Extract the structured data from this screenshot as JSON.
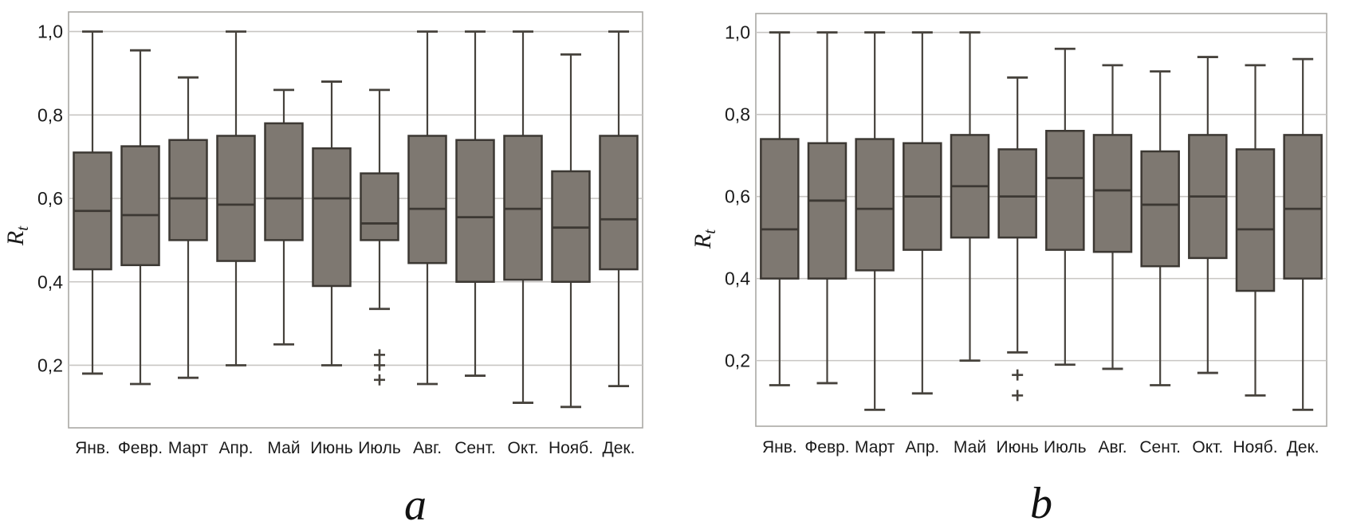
{
  "figure": {
    "background": "#ffffff"
  },
  "colors": {
    "box_fill": "#7e7871",
    "box_border": "#3c3833",
    "whisker": "#46423c",
    "median": "#3c3833",
    "gridline": "#c8c6c3",
    "plot_border": "#aaa8a5",
    "text": "#1b1b1b",
    "outlier": "#46423c"
  },
  "chart_data": [
    {
      "type": "box",
      "caption": "a",
      "ylabel": {
        "main": "R",
        "sub": "t"
      },
      "ylim": [
        0.05,
        1.047
      ],
      "grid": true,
      "yticks": [
        {
          "label": "1,0",
          "value": 1.0
        },
        {
          "label": "0,8",
          "value": 0.8
        },
        {
          "label": "0,6",
          "value": 0.6
        },
        {
          "label": "0,4",
          "value": 0.4
        },
        {
          "label": "0,2",
          "value": 0.2
        }
      ],
      "categories": [
        "Янв.",
        "Февр.",
        "Март",
        "Апр.",
        "Май",
        "Июнь",
        "Июль",
        "Авг.",
        "Сент.",
        "Окт.",
        "Нояб.",
        "Дек."
      ],
      "boxes": [
        {
          "month": "Янв.",
          "low": 0.18,
          "q1": 0.43,
          "median": 0.57,
          "q3": 0.71,
          "high": 1.0,
          "outliers": []
        },
        {
          "month": "Февр.",
          "low": 0.155,
          "q1": 0.44,
          "median": 0.56,
          "q3": 0.725,
          "high": 0.955,
          "outliers": []
        },
        {
          "month": "Март",
          "low": 0.17,
          "q1": 0.5,
          "median": 0.6,
          "q3": 0.74,
          "high": 0.89,
          "outliers": []
        },
        {
          "month": "Апр.",
          "low": 0.2,
          "q1": 0.45,
          "median": 0.585,
          "q3": 0.75,
          "high": 1.0,
          "outliers": []
        },
        {
          "month": "Май",
          "low": 0.25,
          "q1": 0.5,
          "median": 0.6,
          "q3": 0.78,
          "high": 0.86,
          "outliers": []
        },
        {
          "month": "Июнь",
          "low": 0.2,
          "q1": 0.39,
          "median": 0.6,
          "q3": 0.72,
          "high": 0.88,
          "outliers": []
        },
        {
          "month": "Июль",
          "low": 0.335,
          "q1": 0.5,
          "median": 0.54,
          "q3": 0.66,
          "high": 0.86,
          "outliers": [
            0.225,
            0.2,
            0.165
          ]
        },
        {
          "month": "Авг.",
          "low": 0.155,
          "q1": 0.445,
          "median": 0.575,
          "q3": 0.75,
          "high": 1.0,
          "outliers": []
        },
        {
          "month": "Сент.",
          "low": 0.175,
          "q1": 0.4,
          "median": 0.555,
          "q3": 0.74,
          "high": 1.0,
          "outliers": []
        },
        {
          "month": "Окт.",
          "low": 0.11,
          "q1": 0.405,
          "median": 0.575,
          "q3": 0.75,
          "high": 1.0,
          "outliers": []
        },
        {
          "month": "Нояб.",
          "low": 0.1,
          "q1": 0.4,
          "median": 0.53,
          "q3": 0.665,
          "high": 0.945,
          "outliers": []
        },
        {
          "month": "Дек.",
          "low": 0.15,
          "q1": 0.43,
          "median": 0.55,
          "q3": 0.75,
          "high": 1.0,
          "outliers": []
        }
      ]
    },
    {
      "type": "box",
      "caption": "b",
      "ylabel": {
        "main": "R",
        "sub": "t"
      },
      "ylim": [
        0.04,
        1.046
      ],
      "grid": true,
      "yticks": [
        {
          "label": "1,0",
          "value": 1.0
        },
        {
          "label": "0,8",
          "value": 0.8
        },
        {
          "label": "0,6",
          "value": 0.6
        },
        {
          "label": "0,4",
          "value": 0.4
        },
        {
          "label": "0,2",
          "value": 0.2
        }
      ],
      "categories": [
        "Янв.",
        "Февр.",
        "Март",
        "Апр.",
        "Май",
        "Июнь",
        "Июль",
        "Авг.",
        "Сент.",
        "Окт.",
        "Нояб.",
        "Дек."
      ],
      "boxes": [
        {
          "month": "Янв.",
          "low": 0.14,
          "q1": 0.4,
          "median": 0.52,
          "q3": 0.74,
          "high": 1.0,
          "outliers": []
        },
        {
          "month": "Февр.",
          "low": 0.145,
          "q1": 0.4,
          "median": 0.59,
          "q3": 0.73,
          "high": 1.0,
          "outliers": []
        },
        {
          "month": "Март",
          "low": 0.08,
          "q1": 0.42,
          "median": 0.57,
          "q3": 0.74,
          "high": 1.0,
          "outliers": []
        },
        {
          "month": "Апр.",
          "low": 0.12,
          "q1": 0.47,
          "median": 0.6,
          "q3": 0.73,
          "high": 1.0,
          "outliers": []
        },
        {
          "month": "Май",
          "low": 0.2,
          "q1": 0.5,
          "median": 0.625,
          "q3": 0.75,
          "high": 1.0,
          "outliers": []
        },
        {
          "month": "Июнь",
          "low": 0.22,
          "q1": 0.5,
          "median": 0.6,
          "q3": 0.715,
          "high": 0.89,
          "outliers": [
            0.165,
            0.115
          ]
        },
        {
          "month": "Июль",
          "low": 0.19,
          "q1": 0.47,
          "median": 0.645,
          "q3": 0.76,
          "high": 0.96,
          "outliers": []
        },
        {
          "month": "Авг.",
          "low": 0.18,
          "q1": 0.465,
          "median": 0.615,
          "q3": 0.75,
          "high": 0.92,
          "outliers": []
        },
        {
          "month": "Сент.",
          "low": 0.14,
          "q1": 0.43,
          "median": 0.58,
          "q3": 0.71,
          "high": 0.905,
          "outliers": []
        },
        {
          "month": "Окт.",
          "low": 0.17,
          "q1": 0.45,
          "median": 0.6,
          "q3": 0.75,
          "high": 0.94,
          "outliers": []
        },
        {
          "month": "Нояб.",
          "low": 0.115,
          "q1": 0.37,
          "median": 0.52,
          "q3": 0.715,
          "high": 0.92,
          "outliers": []
        },
        {
          "month": "Дек.",
          "low": 0.08,
          "q1": 0.4,
          "median": 0.57,
          "q3": 0.75,
          "high": 0.935,
          "outliers": []
        }
      ]
    }
  ]
}
